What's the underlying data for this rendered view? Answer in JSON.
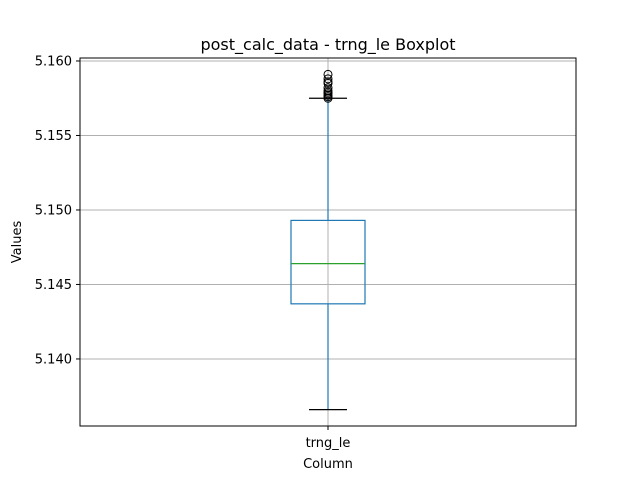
{
  "chart_data": {
    "type": "boxplot",
    "title": "post_calc_data - trng_le Boxplot",
    "xlabel": "Column",
    "ylabel": "Values",
    "categories": [
      "trng_le"
    ],
    "ylim": [
      5.1355,
      5.1602
    ],
    "yticks": [
      "5.140",
      "5.145",
      "5.150",
      "5.155",
      "5.160"
    ],
    "ytick_values": [
      5.14,
      5.145,
      5.15,
      5.155,
      5.16
    ],
    "grid": true,
    "boxes": [
      {
        "name": "trng_le",
        "whisker_low": 5.1366,
        "q1": 5.1437,
        "median": 5.1464,
        "q3": 5.1493,
        "whisker_high": 5.1575,
        "outliers": [
          5.1575,
          5.1576,
          5.1577,
          5.1578,
          5.1579,
          5.158,
          5.1582,
          5.1585,
          5.1586,
          5.1588,
          5.1591
        ]
      }
    ],
    "colors": {
      "box": "#1f77b4",
      "median": "#2ca02c",
      "whisker": "#1f77b4",
      "cap": "#000000",
      "outlier": "#000000",
      "grid": "#b0b0b0"
    }
  }
}
